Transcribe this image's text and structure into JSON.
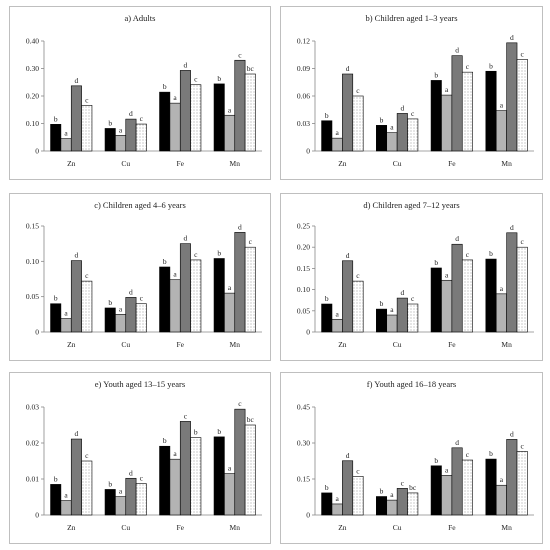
{
  "chart_data": [
    {
      "type": "bar",
      "title": "a) Adults",
      "categories": [
        "Zn",
        "Cu",
        "Fe",
        "Mn"
      ],
      "ylim": [
        0,
        0.4
      ],
      "yticks": [
        "0",
        "0.10",
        "0.20",
        "0.30",
        "0.40"
      ],
      "grid": false,
      "series": [
        {
          "values": [
            0.097,
            0.082,
            0.214,
            0.244
          ],
          "labels": [
            "b",
            "b",
            "b",
            "b"
          ],
          "color": "#000000",
          "pattern": "solid"
        },
        {
          "values": [
            0.045,
            0.057,
            0.174,
            0.13
          ],
          "labels": [
            "a",
            "a",
            "a",
            "a"
          ],
          "color": "#b3b3b3",
          "pattern": "solid"
        },
        {
          "values": [
            0.237,
            0.116,
            0.293,
            0.33
          ],
          "labels": [
            "d",
            "d",
            "d",
            "c"
          ],
          "color": "#7a7a7a",
          "pattern": "solid"
        },
        {
          "values": [
            0.166,
            0.098,
            0.241,
            0.28
          ],
          "labels": [
            "c",
            "c",
            "c",
            "bc"
          ],
          "color": "#ffffff",
          "pattern": "dots"
        }
      ]
    },
    {
      "type": "bar",
      "title": "b) Children aged 1–3 years",
      "categories": [
        "Zn",
        "Cu",
        "Fe",
        "Mn"
      ],
      "ylim": [
        0,
        0.12
      ],
      "yticks": [
        "0",
        "0.03",
        "0.06",
        "0.09",
        "0.12"
      ],
      "grid": false,
      "series": [
        {
          "values": [
            0.033,
            0.028,
            0.077,
            0.087
          ],
          "labels": [
            "b",
            "b",
            "b",
            "b"
          ],
          "color": "#000000",
          "pattern": "solid"
        },
        {
          "values": [
            0.014,
            0.02,
            0.061,
            0.044
          ],
          "labels": [
            "a",
            "a",
            "a",
            "a"
          ],
          "color": "#b3b3b3",
          "pattern": "solid"
        },
        {
          "values": [
            0.084,
            0.041,
            0.104,
            0.118
          ],
          "labels": [
            "d",
            "d",
            "d",
            "d"
          ],
          "color": "#7a7a7a",
          "pattern": "solid"
        },
        {
          "values": [
            0.06,
            0.035,
            0.086,
            0.1
          ],
          "labels": [
            "c",
            "c",
            "c",
            "c"
          ],
          "color": "#ffffff",
          "pattern": "dots"
        }
      ]
    },
    {
      "type": "bar",
      "title": "c) Children aged 4–6 years",
      "categories": [
        "Zn",
        "Cu",
        "Fe",
        "Mn"
      ],
      "ylim": [
        0,
        0.15
      ],
      "yticks": [
        "0",
        "0.05",
        "0.10",
        "0.15"
      ],
      "grid": false,
      "series": [
        {
          "values": [
            0.04,
            0.034,
            0.092,
            0.104
          ],
          "labels": [
            "b",
            "b",
            "b",
            "b"
          ],
          "color": "#000000",
          "pattern": "solid"
        },
        {
          "values": [
            0.019,
            0.025,
            0.074,
            0.055
          ],
          "labels": [
            "a",
            "a",
            "a",
            "a"
          ],
          "color": "#b3b3b3",
          "pattern": "solid"
        },
        {
          "values": [
            0.101,
            0.049,
            0.125,
            0.141
          ],
          "labels": [
            "d",
            "d",
            "d",
            "d"
          ],
          "color": "#7a7a7a",
          "pattern": "solid"
        },
        {
          "values": [
            0.072,
            0.04,
            0.102,
            0.12
          ],
          "labels": [
            "c",
            "c",
            "c",
            "c"
          ],
          "color": "#ffffff",
          "pattern": "dots"
        }
      ]
    },
    {
      "type": "bar",
      "title": "d) Children aged 7–12 years",
      "categories": [
        "Zn",
        "Cu",
        "Fe",
        "Mn"
      ],
      "ylim": [
        0,
        0.25
      ],
      "yticks": [
        "0",
        "0.05",
        "0.10",
        "0.15",
        "0.20",
        "0.25"
      ],
      "grid": false,
      "series": [
        {
          "values": [
            0.066,
            0.054,
            0.151,
            0.172
          ],
          "labels": [
            "b",
            "b",
            "b",
            "b"
          ],
          "color": "#000000",
          "pattern": "solid"
        },
        {
          "values": [
            0.03,
            0.04,
            0.122,
            0.09
          ],
          "labels": [
            "a",
            "a",
            "a",
            "a"
          ],
          "color": "#b3b3b3",
          "pattern": "solid"
        },
        {
          "values": [
            0.168,
            0.08,
            0.207,
            0.234
          ],
          "labels": [
            "d",
            "d",
            "d",
            "d"
          ],
          "color": "#7a7a7a",
          "pattern": "solid"
        },
        {
          "values": [
            0.12,
            0.066,
            0.17,
            0.2
          ],
          "labels": [
            "c",
            "c",
            "c",
            "c"
          ],
          "color": "#ffffff",
          "pattern": "dots"
        }
      ]
    },
    {
      "type": "bar",
      "title": "e) Youth aged 13–15 years",
      "categories": [
        "Zn",
        "Cu",
        "Fe",
        "Mn"
      ],
      "ylim": [
        0,
        0.03
      ],
      "yticks": [
        "0",
        "0.01",
        "0.02",
        "0.03"
      ],
      "grid": false,
      "series": [
        {
          "values": [
            0.0085,
            0.0071,
            0.0191,
            0.0217
          ],
          "labels": [
            "b",
            "b",
            "b",
            "b"
          ],
          "color": "#000000",
          "pattern": "solid"
        },
        {
          "values": [
            0.004,
            0.0051,
            0.0155,
            0.0115
          ],
          "labels": [
            "a",
            "a",
            "a",
            "a"
          ],
          "color": "#b3b3b3",
          "pattern": "solid"
        },
        {
          "values": [
            0.0211,
            0.0102,
            0.026,
            0.0294
          ],
          "labels": [
            "d",
            "d",
            "c",
            "c"
          ],
          "color": "#7a7a7a",
          "pattern": "solid"
        },
        {
          "values": [
            0.015,
            0.0087,
            0.0215,
            0.025
          ],
          "labels": [
            "c",
            "c",
            "b",
            "bc"
          ],
          "color": "#ffffff",
          "pattern": "dots"
        }
      ]
    },
    {
      "type": "bar",
      "title": "f) Youth aged 16–18 years",
      "categories": [
        "Zn",
        "Cu",
        "Fe",
        "Mn"
      ],
      "ylim": [
        0,
        0.45
      ],
      "yticks": [
        "0",
        "0.15",
        "0.30",
        "0.45"
      ],
      "grid": false,
      "series": [
        {
          "values": [
            0.092,
            0.077,
            0.205,
            0.233
          ],
          "labels": [
            "b",
            "b",
            "b",
            "b"
          ],
          "color": "#000000",
          "pattern": "solid"
        },
        {
          "values": [
            0.046,
            0.062,
            0.165,
            0.124
          ],
          "labels": [
            "a",
            "a",
            "a",
            "a"
          ],
          "color": "#b3b3b3",
          "pattern": "solid"
        },
        {
          "values": [
            0.226,
            0.111,
            0.28,
            0.315
          ],
          "labels": [
            "d",
            "c",
            "d",
            "d"
          ],
          "color": "#7a7a7a",
          "pattern": "solid"
        },
        {
          "values": [
            0.161,
            0.092,
            0.229,
            0.265
          ],
          "labels": [
            "c",
            "bc",
            "c",
            "c"
          ],
          "color": "#ffffff",
          "pattern": "dots"
        }
      ]
    }
  ]
}
